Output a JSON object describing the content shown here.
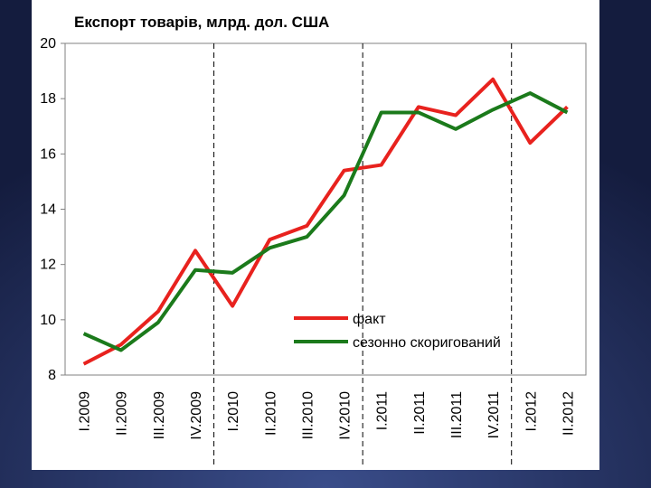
{
  "chart_data": {
    "type": "line",
    "title": "Експорт товарів, млрд. дол. США",
    "categories": [
      "I.2009",
      "II.2009",
      "III.2009",
      "IV.2009",
      "I.2010",
      "II.2010",
      "III.2010",
      "IV.2010",
      "I.2011",
      "II.2011",
      "III.2011",
      "IV.2011",
      "I.2012",
      "II.2012"
    ],
    "series": [
      {
        "name": "факт",
        "color": "#e8221e",
        "values": [
          8.4,
          9.1,
          10.3,
          12.5,
          10.5,
          12.9,
          13.4,
          15.4,
          15.6,
          17.7,
          17.4,
          18.7,
          16.4,
          17.7
        ]
      },
      {
        "name": "сезонно скоригований",
        "color": "#1b7a1b",
        "values": [
          9.5,
          8.9,
          9.9,
          11.8,
          11.7,
          12.6,
          13.0,
          14.5,
          17.5,
          17.5,
          16.9,
          17.6,
          18.2,
          17.5
        ]
      }
    ],
    "ylim": [
      8,
      20
    ],
    "yticks": [
      8,
      10,
      12,
      14,
      16,
      18,
      20
    ],
    "grid": false
  }
}
